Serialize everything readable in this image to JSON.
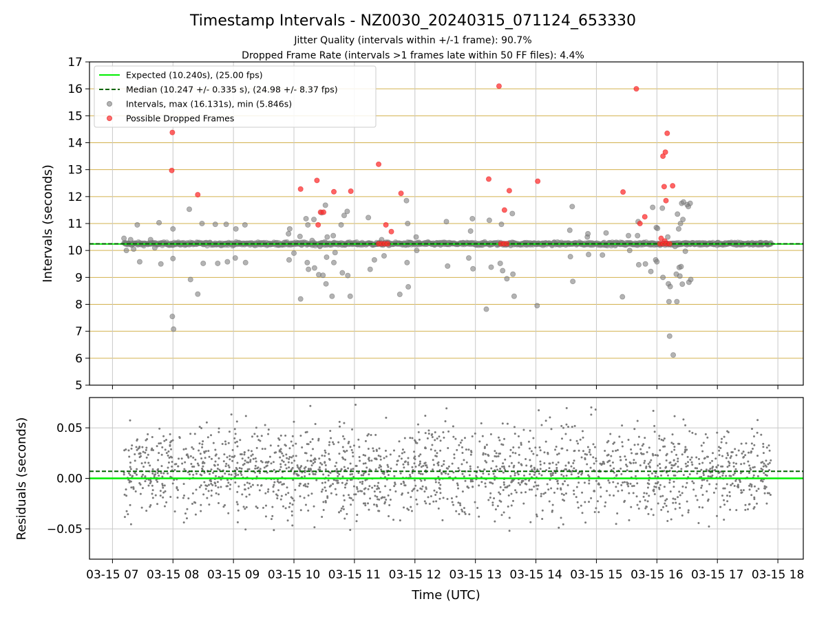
{
  "header": {
    "title": "Timestamp Intervals - NZ0030_20240315_071124_653330",
    "subtitle1": "Jitter Quality (intervals within +/-1 frame): 90.7%",
    "subtitle2": "Dropped Frame Rate (intervals >1 frames late within 50 FF files): 4.4%"
  },
  "colors": {
    "expected": "#00ee00",
    "median": "#006400",
    "intervals": "#808080",
    "dropped": "#ff3030",
    "hgrid_top": "#d2b04c",
    "grid": "#c8c8c8"
  },
  "chart_data": [
    {
      "type": "scatter",
      "name": "intervals-panel",
      "ylabel": "Intervals (seconds)",
      "xlabel": "",
      "ylim": [
        5,
        17
      ],
      "xlim": [
        6.62,
        18.42
      ],
      "yticks": [
        "5",
        "6",
        "7",
        "8",
        "9",
        "10",
        "11",
        "12",
        "13",
        "14",
        "15",
        "16",
        "17"
      ],
      "grid": true,
      "legend_position": "top-left",
      "legend": [
        "Expected (10.240s), (25.00 fps)",
        "Median (10.247 +/- 0.335 s), (24.98 +/- 8.37 fps)",
        "Intervals, max (16.131s), min (5.846s)",
        "Possible Dropped Frames"
      ],
      "expected_value": 10.24,
      "median_value": 10.247,
      "intervals_max": 16.131,
      "intervals_min": 5.846,
      "time_range": [
        7.19,
        17.89
      ],
      "outliers": [
        [
          7.19,
          10.45
        ],
        [
          7.23,
          10.0
        ],
        [
          7.3,
          10.4
        ],
        [
          7.35,
          10.05
        ],
        [
          7.41,
          10.95
        ],
        [
          7.45,
          9.58
        ],
        [
          7.63,
          10.4
        ],
        [
          7.7,
          10.1
        ],
        [
          7.77,
          11.03
        ],
        [
          7.8,
          9.5
        ],
        [
          7.99,
          7.55
        ],
        [
          8.01,
          7.08
        ],
        [
          8.0,
          10.8
        ],
        [
          8.0,
          9.7
        ],
        [
          8.27,
          11.53
        ],
        [
          8.29,
          8.92
        ],
        [
          8.41,
          8.38
        ],
        [
          8.48,
          11.0
        ],
        [
          8.5,
          9.52
        ],
        [
          8.7,
          10.97
        ],
        [
          8.74,
          9.52
        ],
        [
          8.88,
          10.97
        ],
        [
          8.9,
          9.58
        ],
        [
          9.03,
          9.72
        ],
        [
          9.04,
          10.8
        ],
        [
          9.19,
          10.95
        ],
        [
          9.2,
          9.55
        ],
        [
          9.91,
          10.62
        ],
        [
          9.92,
          9.65
        ],
        [
          9.93,
          10.8
        ],
        [
          10.0,
          9.9
        ],
        [
          10.1,
          10.52
        ],
        [
          10.11,
          8.2
        ],
        [
          10.2,
          11.18
        ],
        [
          10.22,
          9.55
        ],
        [
          10.23,
          10.95
        ],
        [
          10.24,
          9.3
        ],
        [
          10.3,
          10.37
        ],
        [
          10.33,
          11.15
        ],
        [
          10.34,
          9.35
        ],
        [
          10.41,
          9.1
        ],
        [
          10.43,
          10.15
        ],
        [
          10.46,
          11.4
        ],
        [
          10.48,
          9.08
        ],
        [
          10.52,
          11.68
        ],
        [
          10.53,
          8.76
        ],
        [
          10.54,
          9.75
        ],
        [
          10.55,
          10.5
        ],
        [
          10.63,
          8.3
        ],
        [
          10.65,
          10.55
        ],
        [
          10.66,
          9.55
        ],
        [
          10.68,
          9.92
        ],
        [
          10.78,
          10.95
        ],
        [
          10.8,
          9.17
        ],
        [
          10.83,
          11.3
        ],
        [
          10.88,
          11.45
        ],
        [
          10.89,
          9.07
        ],
        [
          10.93,
          8.3
        ],
        [
          11.23,
          11.22
        ],
        [
          11.26,
          9.3
        ],
        [
          11.33,
          9.65
        ],
        [
          11.45,
          10.4
        ],
        [
          11.49,
          9.8
        ],
        [
          11.75,
          8.37
        ],
        [
          11.86,
          11.85
        ],
        [
          11.87,
          9.55
        ],
        [
          11.88,
          11.0
        ],
        [
          11.89,
          8.65
        ],
        [
          12.02,
          10.5
        ],
        [
          12.03,
          10.0
        ],
        [
          12.52,
          11.07
        ],
        [
          12.54,
          9.42
        ],
        [
          12.89,
          9.72
        ],
        [
          12.92,
          10.72
        ],
        [
          12.95,
          11.18
        ],
        [
          12.96,
          9.32
        ],
        [
          13.18,
          7.82
        ],
        [
          13.23,
          11.12
        ],
        [
          13.26,
          9.38
        ],
        [
          13.41,
          9.52
        ],
        [
          13.43,
          10.97
        ],
        [
          13.45,
          9.25
        ],
        [
          13.52,
          8.95
        ],
        [
          13.61,
          11.37
        ],
        [
          13.62,
          9.12
        ],
        [
          13.64,
          8.3
        ],
        [
          14.02,
          7.95
        ],
        [
          14.56,
          10.75
        ],
        [
          14.57,
          9.77
        ],
        [
          14.6,
          11.63
        ],
        [
          14.61,
          8.85
        ],
        [
          14.85,
          10.5
        ],
        [
          14.86,
          10.62
        ],
        [
          14.87,
          9.85
        ],
        [
          15.1,
          9.83
        ],
        [
          15.16,
          10.65
        ],
        [
          15.43,
          8.28
        ],
        [
          15.53,
          10.55
        ],
        [
          15.55,
          10.0
        ],
        [
          15.68,
          10.55
        ],
        [
          15.69,
          11.07
        ],
        [
          15.7,
          9.47
        ],
        [
          15.81,
          9.5
        ],
        [
          15.9,
          9.22
        ],
        [
          15.93,
          11.6
        ],
        [
          15.98,
          9.65
        ],
        [
          15.99,
          10.85
        ],
        [
          16.0,
          9.58
        ],
        [
          16.01,
          10.82
        ],
        [
          16.09,
          11.57
        ],
        [
          16.1,
          9.0
        ],
        [
          16.18,
          10.5
        ],
        [
          16.19,
          8.76
        ],
        [
          16.2,
          8.1
        ],
        [
          16.21,
          6.82
        ],
        [
          16.22,
          8.66
        ],
        [
          16.27,
          6.12
        ],
        [
          16.3,
          10.15
        ],
        [
          16.32,
          9.12
        ],
        [
          16.33,
          8.1
        ],
        [
          16.34,
          11.35
        ],
        [
          16.36,
          10.8
        ],
        [
          16.37,
          9.37
        ],
        [
          16.38,
          9.05
        ],
        [
          16.39,
          11.0
        ],
        [
          16.4,
          9.4
        ],
        [
          16.41,
          11.75
        ],
        [
          16.42,
          8.75
        ],
        [
          16.43,
          11.15
        ],
        [
          16.44,
          11.8
        ],
        [
          16.47,
          9.97
        ],
        [
          16.5,
          11.7
        ],
        [
          16.52,
          11.63
        ],
        [
          16.53,
          8.82
        ],
        [
          16.55,
          11.75
        ],
        [
          16.56,
          8.92
        ]
      ],
      "dropped_frames": [
        [
          7.99,
          14.38
        ],
        [
          7.98,
          12.97
        ],
        [
          8.41,
          12.07
        ],
        [
          10.11,
          12.28
        ],
        [
          10.38,
          12.6
        ],
        [
          10.4,
          10.95
        ],
        [
          10.44,
          11.42
        ],
        [
          10.49,
          11.42
        ],
        [
          10.66,
          12.18
        ],
        [
          10.94,
          12.2
        ],
        [
          11.4,
          13.2
        ],
        [
          11.52,
          10.95
        ],
        [
          11.77,
          12.12
        ],
        [
          11.4,
          10.25
        ],
        [
          11.45,
          10.25
        ],
        [
          11.5,
          10.25
        ],
        [
          11.55,
          10.25
        ],
        [
          11.61,
          10.7
        ],
        [
          13.22,
          12.65
        ],
        [
          13.56,
          12.22
        ],
        [
          13.48,
          11.5
        ],
        [
          13.39,
          16.1
        ],
        [
          13.42,
          10.25
        ],
        [
          13.47,
          10.25
        ],
        [
          13.52,
          10.25
        ],
        [
          14.03,
          12.57
        ],
        [
          15.44,
          12.17
        ],
        [
          15.66,
          16.0
        ],
        [
          15.72,
          11.0
        ],
        [
          15.8,
          11.25
        ],
        [
          16.1,
          13.5
        ],
        [
          16.14,
          13.65
        ],
        [
          16.12,
          12.37
        ],
        [
          16.17,
          14.35
        ],
        [
          16.26,
          12.4
        ],
        [
          16.15,
          11.85
        ],
        [
          16.07,
          10.45
        ],
        [
          16.13,
          10.35
        ],
        [
          16.05,
          10.25
        ],
        [
          16.1,
          10.25
        ],
        [
          16.16,
          10.25
        ],
        [
          16.21,
          10.25
        ]
      ]
    },
    {
      "type": "scatter",
      "name": "residuals-panel",
      "ylabel": "Residuals (seconds)",
      "xlabel": "Time (UTC)",
      "ylim": [
        -0.08,
        0.08
      ],
      "yticks": [
        {
          "label": "0.05",
          "value": 0.05
        },
        {
          "label": "0.00",
          "value": 0.0
        },
        {
          "label": "−0.05",
          "value": -0.05
        }
      ],
      "expected_residual": 0.0,
      "median_residual": 0.007,
      "residual_spread": [
        -0.08,
        0.08
      ],
      "grid": true,
      "xticks": [
        {
          "value": 7,
          "label": "03-15 07"
        },
        {
          "value": 8,
          "label": "03-15 08"
        },
        {
          "value": 9,
          "label": "03-15 09"
        },
        {
          "value": 10,
          "label": "03-15 10"
        },
        {
          "value": 11,
          "label": "03-15 11"
        },
        {
          "value": 12,
          "label": "03-15 12"
        },
        {
          "value": 13,
          "label": "03-15 13"
        },
        {
          "value": 14,
          "label": "03-15 14"
        },
        {
          "value": 15,
          "label": "03-15 15"
        },
        {
          "value": 16,
          "label": "03-15 16"
        },
        {
          "value": 17,
          "label": "03-15 17"
        },
        {
          "value": 18,
          "label": "03-15 18"
        }
      ]
    }
  ]
}
